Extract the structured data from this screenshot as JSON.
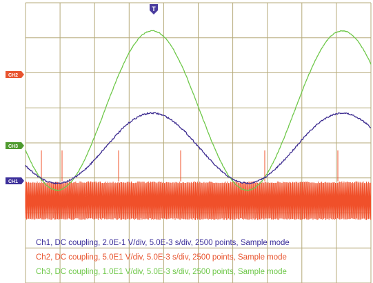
{
  "chart_data": {
    "type": "line",
    "grid": true,
    "x_divisions": 10,
    "y_divisions": 8,
    "trigger_marker": "T",
    "channel_markers": [
      {
        "label": "CH2",
        "color": "#e8542f"
      },
      {
        "label": "CH3",
        "color": "#4f9a2f"
      },
      {
        "label": "CH1",
        "color": "#3c2f9a"
      }
    ],
    "series": [
      {
        "name": "Ch1",
        "color": "#3b2a8f",
        "description_waveform": "sine",
        "period_div": 5.5,
        "min_div": -1.15,
        "max_div": 0.85
      },
      {
        "name": "Ch2",
        "color": "#f0502a",
        "description_waveform": "switching",
        "low_div": -2.2,
        "high_div": -1.1
      },
      {
        "name": "Ch3",
        "color": "#6fc84a",
        "description_waveform": "sine",
        "period_div": 5.5,
        "min_div": -1.35,
        "max_div": 3.2
      }
    ],
    "legend": [
      {
        "text": "Ch1, DC coupling, 2.0E-1 V/div, 5.0E-3 s/div, 2500 points, Sample mode",
        "color": "#3c2f9a"
      },
      {
        "text": "Ch2, DC coupling, 5.0E1 V/div, 5.0E-3 s/div, 2500 points, Sample mode",
        "color": "#e8542f"
      },
      {
        "text": "Ch3, DC coupling, 1.0E1 V/div, 5.0E-3 s/div, 2500 points, Sample mode",
        "color": "#6fc84a"
      }
    ]
  }
}
